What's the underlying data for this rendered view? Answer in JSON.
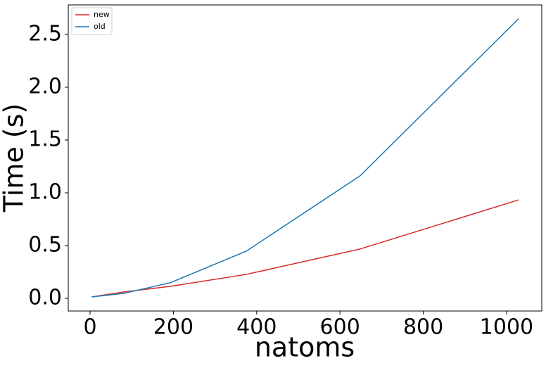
{
  "chart_data": {
    "type": "line",
    "x_label": "natoms",
    "y_label": "Time (s)",
    "x": [
      4,
      80,
      192,
      375,
      648,
      1029
    ],
    "series": [
      {
        "name": "new",
        "color": "#d62728",
        "values": [
          0.013,
          0.06,
          0.113,
          0.227,
          0.467,
          0.933
        ]
      },
      {
        "name": "old",
        "color": "#1f77b4",
        "values": [
          0.013,
          0.047,
          0.147,
          0.447,
          1.16,
          2.65
        ]
      }
    ],
    "xlim": [
      -52.4,
      1084.5
    ],
    "ylim": [
      -0.12,
      2.78
    ],
    "xticks": [
      0,
      200,
      400,
      600,
      800,
      1000
    ],
    "yticks": [
      {
        "value": 0,
        "label": "0.0"
      },
      0.5,
      {
        "value": 1,
        "label": "1.0"
      },
      1.5,
      {
        "value": 2,
        "label": "2.0"
      },
      2.5
    ],
    "legend": "upper left"
  }
}
